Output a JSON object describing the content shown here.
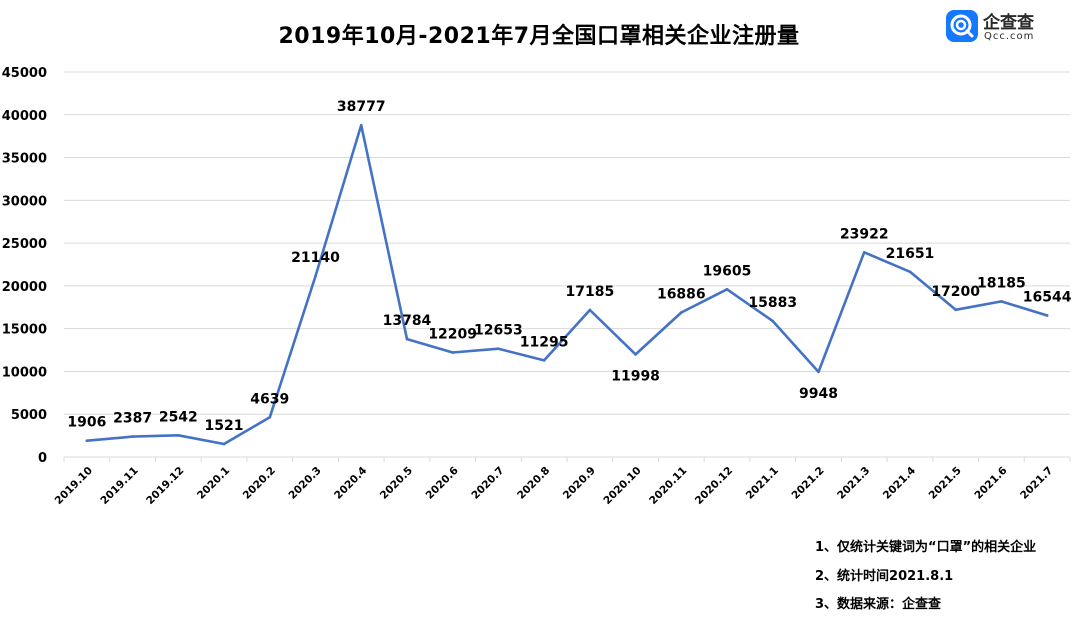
{
  "title": "2019年10月-2021年7月全国口罩相关企业注册量",
  "brand": {
    "name": "企查查",
    "domain": "Qcc.com",
    "color": "#1677ff",
    "icon": "qcc-logo-icon"
  },
  "notes": [
    "1、仅统计关键词为“口罩”的相关企业",
    "2、统计时间2021.8.1",
    "3、数据来源：企查查"
  ],
  "chart_data": {
    "type": "line",
    "title": "2019年10月-2021年7月全国口罩相关企业注册量",
    "xlabel": "",
    "ylabel": "",
    "categories": [
      "2019.10",
      "2019.11",
      "2019.12",
      "2020.1",
      "2020.2",
      "2020.3",
      "2020.4",
      "2020.5",
      "2020.6",
      "2020.7",
      "2020.8",
      "2020.9",
      "2020.10",
      "2020.11",
      "2020.12",
      "2021.1",
      "2021.2",
      "2021.3",
      "2021.4",
      "2021.5",
      "2021.6",
      "2021.7"
    ],
    "values": [
      1906,
      2387,
      2542,
      1521,
      4639,
      21140,
      38777,
      13784,
      12209,
      12653,
      11295,
      17185,
      11998,
      16886,
      19605,
      15883,
      9948,
      23922,
      21651,
      17200,
      18185,
      16544
    ],
    "ylim": [
      0,
      45000
    ],
    "yticks": [
      0,
      5000,
      10000,
      15000,
      20000,
      25000,
      30000,
      35000,
      40000,
      45000
    ],
    "grid": true,
    "legend": "none",
    "line_color": "#4472c4",
    "grid_color": "#d9d9d9"
  }
}
